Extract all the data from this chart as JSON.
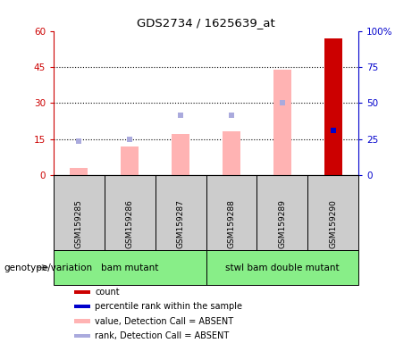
{
  "title": "GDS2734 / 1625639_at",
  "samples": [
    "GSM159285",
    "GSM159286",
    "GSM159287",
    "GSM159288",
    "GSM159289",
    "GSM159290"
  ],
  "count_values": [
    null,
    null,
    null,
    null,
    null,
    57
  ],
  "count_color": "#cc0000",
  "pink_bar_values": [
    3,
    12,
    17,
    18,
    44,
    null
  ],
  "pink_bar_color": "#ffb3b3",
  "blue_dot_values_left": [
    14,
    15,
    25,
    25,
    30,
    null
  ],
  "blue_dot_color": "#aaaadd",
  "blue_rank_last": 31,
  "blue_rank_last_color": "#0000cc",
  "left_ylim": [
    0,
    60
  ],
  "right_ylim": [
    0,
    100
  ],
  "left_yticks": [
    0,
    15,
    30,
    45,
    60
  ],
  "right_yticks": [
    0,
    25,
    50,
    75,
    100
  ],
  "right_yticklabels": [
    "0",
    "25",
    "50",
    "75",
    "100%"
  ],
  "left_tick_color": "#cc0000",
  "right_tick_color": "#0000cc",
  "genotype_groups": [
    {
      "label": "bam mutant",
      "start": 0,
      "end": 3,
      "color": "#88ee88"
    },
    {
      "label": "stwl bam double mutant",
      "start": 3,
      "end": 6,
      "color": "#88ee88"
    }
  ],
  "genotype_label": "genotype/variation",
  "sample_box_color": "#cccccc",
  "legend_items": [
    {
      "label": "count",
      "color": "#cc0000"
    },
    {
      "label": "percentile rank within the sample",
      "color": "#0000cc"
    },
    {
      "label": "value, Detection Call = ABSENT",
      "color": "#ffb3b3"
    },
    {
      "label": "rank, Detection Call = ABSENT",
      "color": "#aaaadd"
    }
  ],
  "figsize": [
    4.61,
    3.84
  ],
  "dpi": 100
}
